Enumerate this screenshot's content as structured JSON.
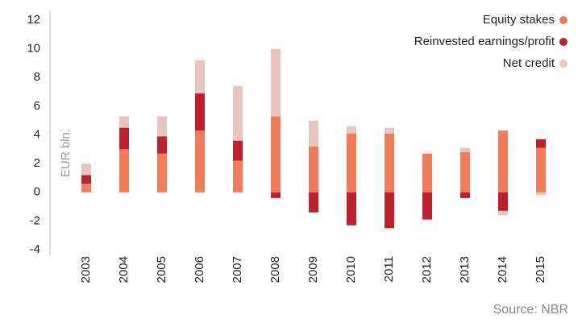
{
  "chart_data": {
    "type": "stacked_bar",
    "y_label": "EUR bln.",
    "source": "Source: NBR",
    "categories": [
      "2003",
      "2004",
      "2005",
      "2006",
      "2007",
      "2008",
      "2009",
      "2010",
      "2011",
      "2012",
      "2013",
      "2014",
      "2015"
    ],
    "series": [
      {
        "name": "Equity stakes",
        "color": "#f07c58",
        "values": [
          0.6,
          3.0,
          2.7,
          4.3,
          2.2,
          5.3,
          3.2,
          4.1,
          4.1,
          2.7,
          2.8,
          4.3,
          3.1
        ]
      },
      {
        "name": "Reinvested earnings/profit",
        "color": "#c0202e",
        "values": [
          0.6,
          1.5,
          1.2,
          2.6,
          1.4,
          -0.4,
          -1.4,
          -2.3,
          -2.5,
          -1.9,
          -0.4,
          -1.3,
          0.6
        ]
      },
      {
        "name": "Net credit",
        "color": "#e8c6bd",
        "values": [
          0.8,
          0.8,
          1.4,
          2.3,
          3.8,
          4.7,
          1.8,
          0.5,
          0.4,
          0,
          0.3,
          -0.3,
          -0.2
        ]
      }
    ],
    "ylim": [
      -4,
      12
    ],
    "yticks": [
      -4,
      -2,
      0,
      2,
      4,
      6,
      8,
      10,
      12
    ],
    "legend": "top-right"
  }
}
